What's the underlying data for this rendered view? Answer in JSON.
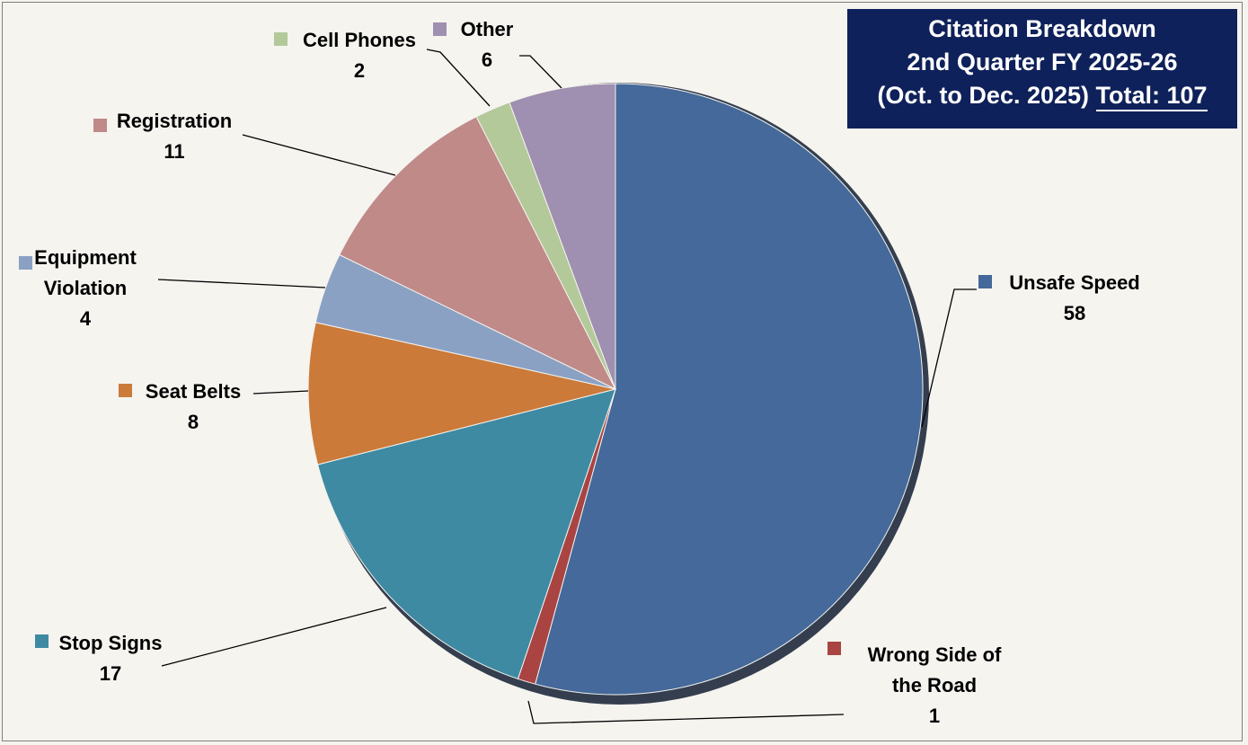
{
  "title": {
    "line1": "Citation Breakdown",
    "line2": "2nd Quarter FY 2025-26",
    "line3_prefix": "(Oct. to Dec. 2025)",
    "line3_total": "Total: 107"
  },
  "chart_data": {
    "type": "pie",
    "title": "Citation Breakdown 2nd Quarter FY 2025-26 (Oct. to Dec. 2025) Total: 107",
    "total": 107,
    "slices": [
      {
        "label": "Unsafe Speed",
        "value": 58,
        "color": "#44699a",
        "label_lines": [
          "Unsafe Speed"
        ]
      },
      {
        "label": "Wrong Side of the Road",
        "value": 1,
        "color": "#a94442",
        "label_lines": [
          "Wrong Side of",
          "the Road"
        ]
      },
      {
        "label": "Stop Signs",
        "value": 17,
        "color": "#3e8aa3",
        "label_lines": [
          "Stop Signs"
        ]
      },
      {
        "label": "Seat Belts",
        "value": 8,
        "color": "#cb7a3a",
        "label_lines": [
          "Seat Belts"
        ]
      },
      {
        "label": "Equipment Violation",
        "value": 4,
        "color": "#8aa1c4",
        "label_lines": [
          "Equipment",
          "Violation"
        ]
      },
      {
        "label": "Registration",
        "value": 11,
        "color": "#c08a89",
        "label_lines": [
          "Registration"
        ]
      },
      {
        "label": "Cell Phones",
        "value": 2,
        "color": "#b3c99a",
        "label_lines": [
          "Cell Phones"
        ]
      },
      {
        "label": "Other",
        "value": 6,
        "color": "#9f8fb0",
        "label_lines": [
          "Other"
        ]
      }
    ],
    "legend": "none",
    "data_labels": "category name and value"
  }
}
